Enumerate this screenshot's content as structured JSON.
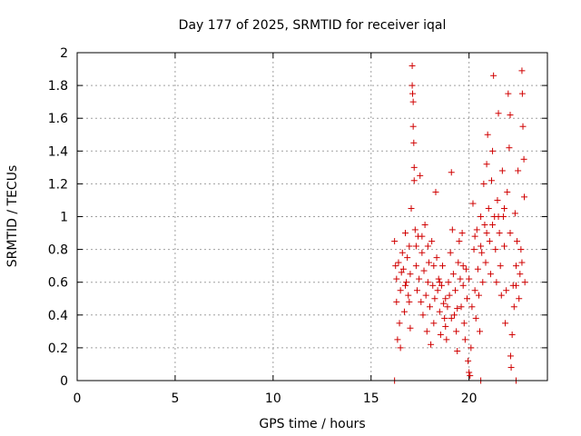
{
  "chart_data": {
    "type": "scatter",
    "title": "Day 177 of 2025, SRMTID for receiver iqal",
    "xlabel": "GPS time / hours",
    "ylabel": "SRMTID / TECUs",
    "xlim": [
      0,
      24
    ],
    "ylim": [
      0,
      2
    ],
    "xticks": [
      0,
      5,
      10,
      15,
      20
    ],
    "xtick_labels": [
      "0",
      "5",
      "10",
      "15",
      "20"
    ],
    "yticks": [
      0,
      0.2,
      0.4,
      0.6,
      0.8,
      1.0,
      1.2,
      1.4,
      1.6,
      1.8,
      2.0
    ],
    "ytick_labels": [
      "0",
      "0.2",
      "0.4",
      "0.6",
      "0.8",
      "1",
      "1.2",
      "1.4",
      "1.6",
      "1.8",
      "2"
    ],
    "grid": true,
    "marker": "+",
    "color": "#d00000",
    "series": [
      {
        "name": "SRMTID",
        "points": [
          [
            16.2,
            0.0
          ],
          [
            20.6,
            0.0
          ],
          [
            22.4,
            0.0
          ],
          [
            16.2,
            0.85
          ],
          [
            16.3,
            0.62
          ],
          [
            16.3,
            0.48
          ],
          [
            16.35,
            0.25
          ],
          [
            16.4,
            0.72
          ],
          [
            16.45,
            0.35
          ],
          [
            16.5,
            0.2
          ],
          [
            16.5,
            0.55
          ],
          [
            16.6,
            0.78
          ],
          [
            16.65,
            0.68
          ],
          [
            16.7,
            0.42
          ],
          [
            16.75,
            0.9
          ],
          [
            16.8,
            0.6
          ],
          [
            16.85,
            0.75
          ],
          [
            16.9,
            0.52
          ],
          [
            16.95,
            0.82
          ],
          [
            17.0,
            0.65
          ],
          [
            17.0,
            0.32
          ],
          [
            17.05,
            1.05
          ],
          [
            17.1,
            1.92
          ],
          [
            17.1,
            1.8
          ],
          [
            17.12,
            1.75
          ],
          [
            17.15,
            1.7
          ],
          [
            17.15,
            1.55
          ],
          [
            17.18,
            1.45
          ],
          [
            17.2,
            1.3
          ],
          [
            17.2,
            1.22
          ],
          [
            17.25,
            0.92
          ],
          [
            17.3,
            0.7
          ],
          [
            17.35,
            0.55
          ],
          [
            17.4,
            0.88
          ],
          [
            17.45,
            0.62
          ],
          [
            17.5,
            1.25
          ],
          [
            17.55,
            0.48
          ],
          [
            17.6,
            0.78
          ],
          [
            17.65,
            0.4
          ],
          [
            17.7,
            0.67
          ],
          [
            17.75,
            0.95
          ],
          [
            17.8,
            0.52
          ],
          [
            17.85,
            0.3
          ],
          [
            17.9,
            0.6
          ],
          [
            17.95,
            0.72
          ],
          [
            18.0,
            0.45
          ],
          [
            18.05,
            0.22
          ],
          [
            18.1,
            0.85
          ],
          [
            18.15,
            0.58
          ],
          [
            18.2,
            0.35
          ],
          [
            18.25,
            0.5
          ],
          [
            18.3,
            1.15
          ],
          [
            18.35,
            0.75
          ],
          [
            18.4,
            0.55
          ],
          [
            18.45,
            0.62
          ],
          [
            18.5,
            0.42
          ],
          [
            18.55,
            0.28
          ],
          [
            18.6,
            0.58
          ],
          [
            18.65,
            0.7
          ],
          [
            18.7,
            0.47
          ],
          [
            18.75,
            0.38
          ],
          [
            18.8,
            0.33
          ],
          [
            18.85,
            0.25
          ],
          [
            18.9,
            0.45
          ],
          [
            18.95,
            0.6
          ],
          [
            19.0,
            0.52
          ],
          [
            19.05,
            0.78
          ],
          [
            19.1,
            1.27
          ],
          [
            19.15,
            0.92
          ],
          [
            19.2,
            0.65
          ],
          [
            19.25,
            0.4
          ],
          [
            19.3,
            0.55
          ],
          [
            19.35,
            0.3
          ],
          [
            19.4,
            0.18
          ],
          [
            19.45,
            0.72
          ],
          [
            19.5,
            0.85
          ],
          [
            19.55,
            0.62
          ],
          [
            19.6,
            0.45
          ],
          [
            19.65,
            0.9
          ],
          [
            19.7,
            0.58
          ],
          [
            19.75,
            0.35
          ],
          [
            19.8,
            0.25
          ],
          [
            19.85,
            0.68
          ],
          [
            19.9,
            0.5
          ],
          [
            19.95,
            0.12
          ],
          [
            20.0,
            0.05
          ],
          [
            20.05,
            0.03
          ],
          [
            20.1,
            0.2
          ],
          [
            20.15,
            0.45
          ],
          [
            20.2,
            1.08
          ],
          [
            20.25,
            0.8
          ],
          [
            20.3,
            0.55
          ],
          [
            20.35,
            0.38
          ],
          [
            20.4,
            0.92
          ],
          [
            20.45,
            0.68
          ],
          [
            20.5,
            0.52
          ],
          [
            20.55,
            0.3
          ],
          [
            20.6,
            1.0
          ],
          [
            20.65,
            0.78
          ],
          [
            20.7,
            0.6
          ],
          [
            20.75,
            1.2
          ],
          [
            20.8,
            0.95
          ],
          [
            20.85,
            0.72
          ],
          [
            20.9,
            1.32
          ],
          [
            20.95,
            1.5
          ],
          [
            21.0,
            1.05
          ],
          [
            21.05,
            0.85
          ],
          [
            21.1,
            0.65
          ],
          [
            21.15,
            1.22
          ],
          [
            21.2,
            1.4
          ],
          [
            21.25,
            1.86
          ],
          [
            21.3,
            1.0
          ],
          [
            21.35,
            0.8
          ],
          [
            21.4,
            0.6
          ],
          [
            21.45,
            1.1
          ],
          [
            21.5,
            1.63
          ],
          [
            21.55,
            0.9
          ],
          [
            21.6,
            0.7
          ],
          [
            21.65,
            0.52
          ],
          [
            21.7,
            1.28
          ],
          [
            21.75,
            1.0
          ],
          [
            21.8,
            0.82
          ],
          [
            21.85,
            0.35
          ],
          [
            21.9,
            0.55
          ],
          [
            21.95,
            1.15
          ],
          [
            22.0,
            1.75
          ],
          [
            22.05,
            1.42
          ],
          [
            22.1,
            1.62
          ],
          [
            22.12,
            0.15
          ],
          [
            22.15,
            0.08
          ],
          [
            22.2,
            0.28
          ],
          [
            22.25,
            0.58
          ],
          [
            22.3,
            0.45
          ],
          [
            22.35,
            1.02
          ],
          [
            22.4,
            0.7
          ],
          [
            22.45,
            0.85
          ],
          [
            22.5,
            1.28
          ],
          [
            22.55,
            0.5
          ],
          [
            22.6,
            0.65
          ],
          [
            22.65,
            0.8
          ],
          [
            22.7,
            1.89
          ],
          [
            22.72,
            1.75
          ],
          [
            22.75,
            1.55
          ],
          [
            22.8,
            1.35
          ],
          [
            22.82,
            1.12
          ],
          [
            22.85,
            0.6
          ],
          [
            16.25,
            0.7
          ],
          [
            16.55,
            0.66
          ],
          [
            16.75,
            0.58
          ],
          [
            16.95,
            0.48
          ],
          [
            17.3,
            0.82
          ],
          [
            17.6,
            0.88
          ],
          [
            17.9,
            0.82
          ],
          [
            18.2,
            0.7
          ],
          [
            18.5,
            0.6
          ],
          [
            18.8,
            0.5
          ],
          [
            19.1,
            0.38
          ],
          [
            19.4,
            0.44
          ],
          [
            19.7,
            0.7
          ],
          [
            20.0,
            0.62
          ],
          [
            20.3,
            0.88
          ],
          [
            20.6,
            0.82
          ],
          [
            20.9,
            0.9
          ],
          [
            21.2,
            0.95
          ],
          [
            21.5,
            1.0
          ],
          [
            21.8,
            1.05
          ],
          [
            22.1,
            0.9
          ],
          [
            22.4,
            0.58
          ],
          [
            22.7,
            0.72
          ]
        ]
      }
    ]
  }
}
